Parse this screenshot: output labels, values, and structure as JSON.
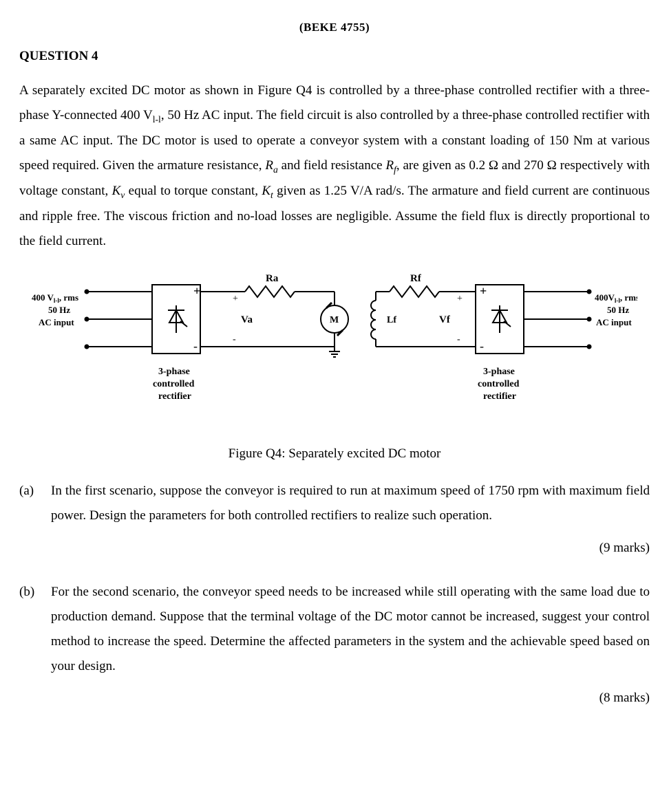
{
  "header_code": "(BEKE 4755)",
  "question_heading": "QUESTION 4",
  "body_html": "A separately excited DC motor as shown in Figure Q4 is controlled by a three-phase controlled rectifier with a three-phase Y-connected 400 V<sub>l-l</sub>, 50 Hz AC input. The field circuit is also controlled by a three-phase controlled rectifier with a same AC input. The DC motor is used to operate a conveyor system with a constant loading of 150 Nm at various speed required.  Given the armature resistance, <i>R<sub>a</sub></i> and field resistance <i>R<sub>f</sub></i>, are given as 0.2 Ω and 270 Ω respectively with voltage constant, <i>K<sub>v</sub></i> equal to torque constant, <i>K<sub>t</sub></i> given as 1.25 V/A rad/s. The armature and field current are continuous and ripple free. The viscous friction and no-load losses are negligible. Assume the field flux is directly proportional to the field current.",
  "figure": {
    "caption": "Figure Q4: Separately excited DC motor",
    "left_input_lines": [
      "400 Vl-l, rms",
      "50 Hz",
      "AC input"
    ],
    "right_input_lines": [
      "400Vl-l, rms",
      "50 Hz",
      "AC input"
    ],
    "rectifier_label_lines": [
      "3-phase",
      "controlled",
      "rectifier"
    ],
    "labels": {
      "Ra": "Ra",
      "Rf": "Rf",
      "Va": "Va",
      "Vf": "Vf",
      "Lf": "Lf",
      "M": "M",
      "plus": "+",
      "minus": "-"
    },
    "stroke": "#000000",
    "fontsize_small": 13,
    "fontsize_label": 15,
    "linewidth": 2
  },
  "parts": {
    "a": {
      "label": "(a)",
      "text": "In the first scenario, suppose the conveyor is required to run at maximum speed of 1750 rpm with maximum field power. Design the parameters for both controlled rectifiers to realize such operation.",
      "marks": "(9 marks)"
    },
    "b": {
      "label": "(b)",
      "text": "For the second scenario, the conveyor speed needs to be increased while still operating with the same load due to production demand. Suppose that the terminal voltage of the DC motor cannot be increased, suggest your control method to increase the speed. Determine the affected parameters in the system and the achievable speed based on your design.",
      "marks": "(8 marks)"
    }
  }
}
